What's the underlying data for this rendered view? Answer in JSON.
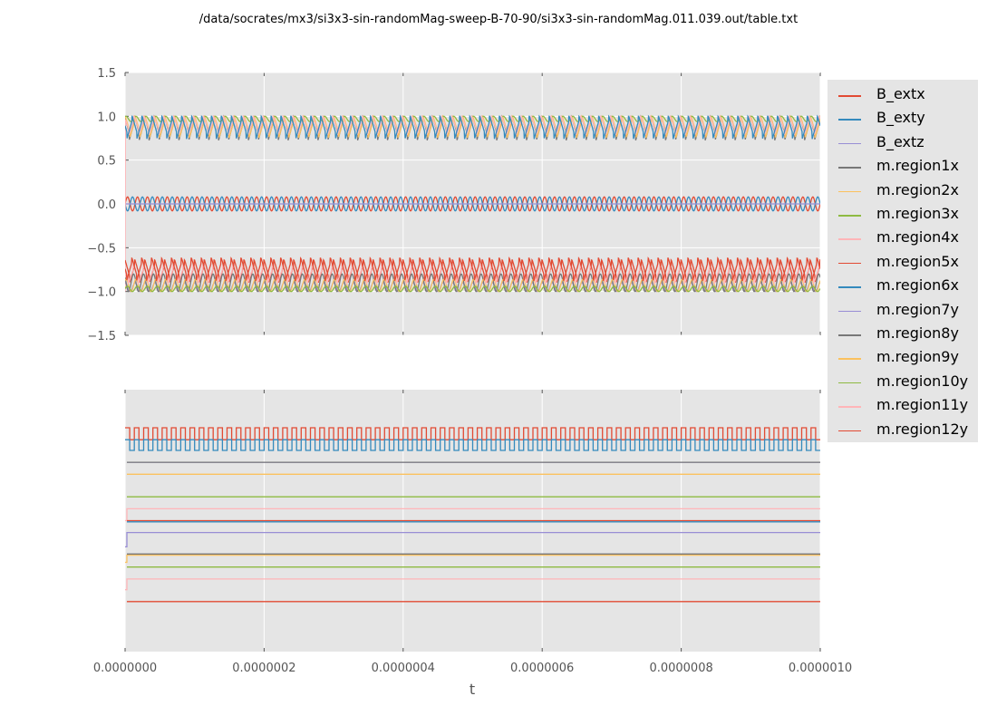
{
  "title": "/data/socrates/mx3/si3x3-sin-randomMag-sweep-B-70-90/si3x3-sin-randomMag.011.039.out/table.txt",
  "chart_data": [
    {
      "type": "line",
      "panel": "top",
      "xlabel": "",
      "ylabel": "",
      "xlim": [
        0,
        1e-06
      ],
      "ylim": [
        -1.5,
        1.5
      ],
      "yticks": [
        "1.5",
        "1.0",
        "0.5",
        "0.0",
        "−0.5",
        "−1.0",
        "−1.5"
      ],
      "ytick_values": [
        1.5,
        1.0,
        0.5,
        0.0,
        -0.5,
        -1.0,
        -1.5
      ],
      "xtick_values": [
        0,
        2e-07,
        4e-07,
        6e-07,
        8e-07,
        1e-06
      ],
      "grid": true,
      "oscillation_periods": 70
    },
    {
      "type": "line",
      "panel": "bottom",
      "xlabel": "t",
      "xlim": [
        0,
        1e-06
      ],
      "ylim": [
        -1.1,
        1.1
      ],
      "xticks": [
        "0.0000000",
        "0.0000002",
        "0.0000004",
        "0.0000006",
        "0.0000008",
        "0.0000010"
      ],
      "xtick_values": [
        0,
        2e-07,
        4e-07,
        6e-07,
        8e-07,
        1e-06
      ],
      "grid": true,
      "square_periods": 75
    }
  ],
  "series": [
    {
      "name": "B_extx",
      "color": "#E24A33",
      "top": {
        "center": 0,
        "amp": 0.08,
        "phase": 0,
        "kind": "sin"
      },
      "bottom": {
        "kind": "square",
        "hi": 0.78,
        "lo": 0.68
      }
    },
    {
      "name": "B_exty",
      "color": "#348ABD",
      "top": {
        "center": 0,
        "amp": 0.08,
        "phase": 3.14,
        "kind": "sin"
      },
      "bottom": {
        "kind": "square",
        "hi": 0.68,
        "lo": 0.59
      }
    },
    {
      "name": "B_extz",
      "color": "#988ED5",
      "top": {
        "center": 0,
        "amp": 0,
        "phase": 0,
        "kind": "sin"
      },
      "bottom": {
        "kind": "flat",
        "level": 0.49
      }
    },
    {
      "name": "m.region1x",
      "color": "#777777",
      "top": {
        "center": 0.81,
        "amp": 0.19,
        "phase": 0.5,
        "kind": "saw"
      },
      "bottom": {
        "kind": "flat",
        "level": 0.49
      }
    },
    {
      "name": "m.region2x",
      "color": "#FBC15E",
      "top": {
        "center": 0.83,
        "amp": 0.17,
        "phase": 0.2,
        "kind": "saw"
      },
      "bottom": {
        "kind": "flat",
        "level": 0.39
      }
    },
    {
      "name": "m.region3x",
      "color": "#8EBA42",
      "top": {
        "center": 0.97,
        "amp": 0.03,
        "phase": 1.0,
        "kind": "sin"
      },
      "bottom": {
        "kind": "flat",
        "level": 0.2
      }
    },
    {
      "name": "m.region4x",
      "color": "#FFB5B8",
      "top": {
        "center": 0.85,
        "amp": 0.15,
        "phase": 0.8,
        "kind": "saw",
        "start": -1.0
      },
      "bottom": {
        "kind": "flat",
        "level": 0.1,
        "start": 0.0
      }
    },
    {
      "name": "m.region5x",
      "color": "#E24A33",
      "top": {
        "center": -0.82,
        "amp": 0.18,
        "phase": 0.3,
        "kind": "saw"
      },
      "bottom": {
        "kind": "flat",
        "level": 0.0
      }
    },
    {
      "name": "m.region6x",
      "color": "#348ABD",
      "top": {
        "center": 0.82,
        "amp": 0.18,
        "phase": 2.0,
        "kind": "saw"
      },
      "bottom": {
        "kind": "flat",
        "level": -0.01
      }
    },
    {
      "name": "m.region7y",
      "color": "#988ED5",
      "top": {
        "center": -0.95,
        "amp": 0.05,
        "phase": 1.5,
        "kind": "sin"
      },
      "bottom": {
        "kind": "flat",
        "level": -0.1,
        "start": -0.22
      }
    },
    {
      "name": "m.region8y",
      "color": "#777777",
      "top": {
        "center": -0.9,
        "amp": 0.1,
        "phase": 2.5,
        "kind": "sin"
      },
      "bottom": {
        "kind": "flat",
        "level": -0.28
      }
    },
    {
      "name": "m.region9y",
      "color": "#FBC15E",
      "top": {
        "center": -0.93,
        "amp": 0.07,
        "phase": 0.9,
        "kind": "sin"
      },
      "bottom": {
        "kind": "flat",
        "level": -0.29,
        "start": -0.35
      }
    },
    {
      "name": "m.region10y",
      "color": "#8EBA42",
      "top": {
        "center": -0.97,
        "amp": 0.03,
        "phase": 0.1,
        "kind": "sin"
      },
      "bottom": {
        "kind": "flat",
        "level": -0.39
      }
    },
    {
      "name": "m.region11y",
      "color": "#FFB5B8",
      "top": {
        "center": -0.85,
        "amp": 0.15,
        "phase": 1.2,
        "kind": "saw"
      },
      "bottom": {
        "kind": "flat",
        "level": -0.49,
        "start": -0.58
      }
    },
    {
      "name": "m.region12y",
      "color": "#E24A33",
      "top": {
        "center": -0.8,
        "amp": 0.18,
        "phase": 2.2,
        "kind": "saw"
      },
      "bottom": {
        "kind": "flat",
        "level": -0.68
      }
    }
  ]
}
